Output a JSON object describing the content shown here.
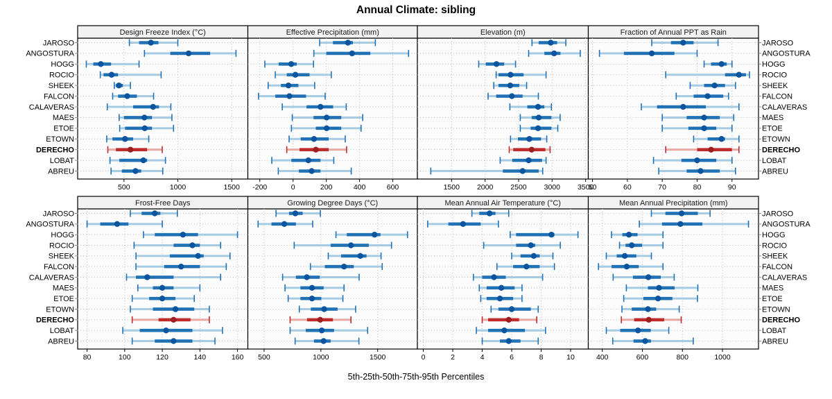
{
  "title": "Annual Climate: sibling",
  "footer": "5th-25th-50th-75th-95th Percentiles",
  "stations": [
    "JAROSO",
    "ANGOSTURA",
    "HOGG",
    "ROCIO",
    "SHEEK",
    "FALCON",
    "CALAVERAS",
    "MAES",
    "ETOE",
    "ETOWN",
    "DERECHO",
    "LOBAT",
    "ABREU"
  ],
  "highlight_station": "DERECHO",
  "colors": {
    "blue_band": "#A6CBE3",
    "blue_main": "#2171B5",
    "blue_dot": "#0B559F",
    "red_band": "#EAA8A4",
    "red_main": "#BD2B2B",
    "red_dot": "#9E1F1F",
    "strip_bg": "#F2F2F2",
    "grid": "#BBBBBB",
    "border": "#000000"
  },
  "chart_data": [
    {
      "type": "percentile-dotplot",
      "title": "Design Freeze Index (°C)",
      "xlim": [
        70,
        1650
      ],
      "ticks": [
        500,
        1000,
        1500
      ],
      "percentiles": [
        [
          550,
          640,
          750,
          820,
          1000
        ],
        [
          690,
          930,
          1100,
          1300,
          1540
        ],
        [
          150,
          215,
          285,
          380,
          640
        ],
        [
          280,
          310,
          385,
          445,
          845
        ],
        [
          410,
          425,
          453,
          490,
          560
        ],
        [
          395,
          445,
          530,
          620,
          775
        ],
        [
          345,
          585,
          770,
          825,
          935
        ],
        [
          455,
          500,
          690,
          760,
          945
        ],
        [
          460,
          510,
          693,
          760,
          960
        ],
        [
          340,
          393,
          510,
          585,
          730
        ],
        [
          350,
          425,
          560,
          715,
          855
        ],
        [
          370,
          457,
          680,
          715,
          885
        ],
        [
          380,
          480,
          607,
          660,
          860
        ]
      ]
    },
    {
      "type": "percentile-dotplot",
      "title": "Effective Precipitation (mm)",
      "xlim": [
        -272,
        748
      ],
      "ticks": [
        -200,
        0,
        200,
        400,
        600
      ],
      "percentiles": [
        [
          160,
          240,
          330,
          360,
          495
        ],
        [
          125,
          200,
          355,
          465,
          695
        ],
        [
          -170,
          -87,
          -11,
          22,
          123
        ],
        [
          -107,
          -38,
          14,
          99,
          230
        ],
        [
          -150,
          -73,
          -28,
          32,
          130
        ],
        [
          -208,
          -107,
          -22,
          78,
          193
        ],
        [
          -65,
          81,
          165,
          241,
          320
        ],
        [
          -5,
          123,
          202,
          290,
          419
        ],
        [
          -10,
          137,
          202,
          290,
          409
        ],
        [
          -24,
          46,
          126,
          214,
          314
        ],
        [
          -38,
          39,
          137,
          214,
          322
        ],
        [
          -128,
          -10,
          92,
          165,
          245
        ],
        [
          -89,
          35,
          112,
          165,
          350
        ]
      ]
    },
    {
      "type": "percentile-dotplot",
      "title": "Elevation (m)",
      "xlim": [
        990,
        3540
      ],
      "ticks": [
        1500,
        2000,
        2500,
        3000,
        3500
      ],
      "percentiles": [
        [
          2700,
          2800,
          2980,
          3075,
          3205
        ],
        [
          2650,
          2885,
          3030,
          3125,
          3420
        ],
        [
          1905,
          2010,
          2170,
          2285,
          2455
        ],
        [
          2165,
          2200,
          2380,
          2575,
          2910
        ],
        [
          2130,
          2200,
          2375,
          2510,
          2620
        ],
        [
          2045,
          2165,
          2400,
          2560,
          2795
        ],
        [
          2370,
          2630,
          2790,
          2885,
          2990
        ],
        [
          2525,
          2695,
          2800,
          2990,
          3120
        ],
        [
          2525,
          2680,
          2790,
          2990,
          3085
        ],
        [
          2380,
          2490,
          2660,
          2835,
          2920
        ],
        [
          2360,
          2420,
          2695,
          2900,
          2970
        ],
        [
          2225,
          2405,
          2650,
          2850,
          2910
        ],
        [
          1190,
          2265,
          2560,
          2800,
          2860
        ]
      ]
    },
    {
      "type": "percentile-dotplot",
      "title": "Fraction of Annual PPT as Rain",
      "xlim": [
        48.8,
        97.6
      ],
      "ticks": [
        50,
        60,
        70,
        80,
        90
      ],
      "percentiles": [
        [
          67,
          72.5,
          76,
          79,
          86
        ],
        [
          52,
          59,
          67,
          73.5,
          80
        ],
        [
          82,
          84,
          87,
          88.5,
          90
        ],
        [
          71,
          88,
          92,
          94,
          95
        ],
        [
          78,
          82,
          85,
          88,
          91
        ],
        [
          74,
          79,
          83,
          87.5,
          89
        ],
        [
          64,
          68.5,
          76,
          82.5,
          92
        ],
        [
          70,
          77,
          82,
          86.5,
          90.5
        ],
        [
          70,
          77.5,
          82,
          85.5,
          90
        ],
        [
          79,
          83,
          87,
          88,
          92
        ],
        [
          71,
          80,
          84,
          90,
          92
        ],
        [
          67.5,
          75.5,
          80,
          85.5,
          90
        ],
        [
          69,
          77,
          81,
          86.5,
          91
        ]
      ]
    },
    {
      "type": "percentile-dotplot",
      "title": "Frost-Free Days",
      "xlim": [
        75,
        165.5
      ],
      "ticks": [
        80,
        100,
        120,
        140,
        160
      ],
      "percentiles": [
        [
          103,
          109,
          116,
          119,
          128
        ],
        [
          80,
          87,
          96,
          102,
          120
        ],
        [
          110,
          116,
          131,
          139,
          160
        ],
        [
          105,
          126,
          136,
          140,
          151
        ],
        [
          106,
          124,
          139,
          142,
          156
        ],
        [
          106,
          121,
          130,
          140,
          154
        ],
        [
          101,
          106,
          112,
          126,
          151
        ],
        [
          107,
          115,
          120,
          126,
          140
        ],
        [
          104,
          113,
          120,
          127,
          137
        ],
        [
          103,
          115,
          127,
          137,
          145
        ],
        [
          104,
          118,
          126,
          135,
          145
        ],
        [
          99,
          108,
          122,
          136,
          152
        ],
        [
          104,
          116,
          126,
          136,
          148
        ]
      ]
    },
    {
      "type": "percentile-dotplot",
      "title": "Growing Degree Days (°C)",
      "xlim": [
        357,
        1850
      ],
      "ticks": [
        500,
        1000,
        1500
      ],
      "percentiles": [
        [
          605,
          720,
          775,
          840,
          995
        ],
        [
          447,
          565,
          678,
          780,
          928
        ],
        [
          1133,
          1228,
          1473,
          1525,
          1763
        ],
        [
          765,
          1086,
          1265,
          1422,
          1622
        ],
        [
          1065,
          1178,
          1347,
          1402,
          1530
        ],
        [
          908,
          1035,
          1204,
          1290,
          1540
        ],
        [
          663,
          780,
          876,
          990,
          1337
        ],
        [
          684,
          820,
          922,
          1024,
          1204
        ],
        [
          712,
          820,
          922,
          1004,
          1194
        ],
        [
          810,
          912,
          1029,
          1147,
          1306
        ],
        [
          729,
          878,
          994,
          1106,
          1265
        ],
        [
          729,
          867,
          1008,
          1116,
          1412
        ],
        [
          773,
          939,
          1024,
          1086,
          1335
        ]
      ]
    },
    {
      "type": "percentile-dotplot",
      "title": "Mean Annual Air Temperature (°C)",
      "xlim": [
        -0.4,
        11.2
      ],
      "ticks": [
        0,
        2,
        4,
        6,
        8,
        10
      ],
      "percentiles": [
        [
          3.3,
          3.8,
          4.5,
          4.9,
          5.8
        ],
        [
          0.3,
          1.7,
          2.7,
          3.9,
          5.1
        ],
        [
          5.9,
          6.3,
          8.7,
          8.9,
          10.5
        ],
        [
          4.1,
          6.3,
          7.3,
          7.6,
          9.3
        ],
        [
          6.0,
          6.6,
          7.5,
          7.9,
          8.8
        ],
        [
          5.0,
          6.1,
          7.0,
          7.9,
          8.9
        ],
        [
          3.4,
          4.0,
          4.8,
          5.6,
          8.1
        ],
        [
          3.8,
          4.3,
          5.3,
          6.2,
          6.7
        ],
        [
          3.9,
          4.3,
          5.2,
          6.1,
          6.7
        ],
        [
          4.6,
          5.1,
          6.0,
          7.3,
          7.8
        ],
        [
          4.0,
          4.4,
          5.8,
          6.5,
          7.7
        ],
        [
          3.6,
          4.4,
          5.5,
          6.9,
          8.3
        ],
        [
          4.0,
          5.2,
          5.8,
          6.6,
          7.8
        ]
      ]
    },
    {
      "type": "percentile-dotplot",
      "title": "Mean Annual Precipitation (mm)",
      "xlim": [
        330,
        1180
      ],
      "ticks": [
        400,
        600,
        800,
        1000
      ],
      "percentiles": [
        [
          645,
          715,
          796,
          877,
          938
        ],
        [
          585,
          698,
          790,
          900,
          1130
        ],
        [
          446,
          500,
          533,
          576,
          703
        ],
        [
          486,
          516,
          547,
          599,
          703
        ],
        [
          420,
          472,
          512,
          570,
          645
        ],
        [
          381,
          446,
          522,
          582,
          703
        ],
        [
          454,
          553,
          630,
          692,
          759
        ],
        [
          520,
          628,
          683,
          761,
          877
        ],
        [
          507,
          605,
          678,
          750,
          875
        ],
        [
          498,
          547,
          628,
          669,
          784
        ],
        [
          495,
          559,
          632,
          709,
          794
        ],
        [
          420,
          489,
          578,
          642,
          732
        ],
        [
          452,
          556,
          614,
          643,
          854
        ]
      ]
    }
  ]
}
